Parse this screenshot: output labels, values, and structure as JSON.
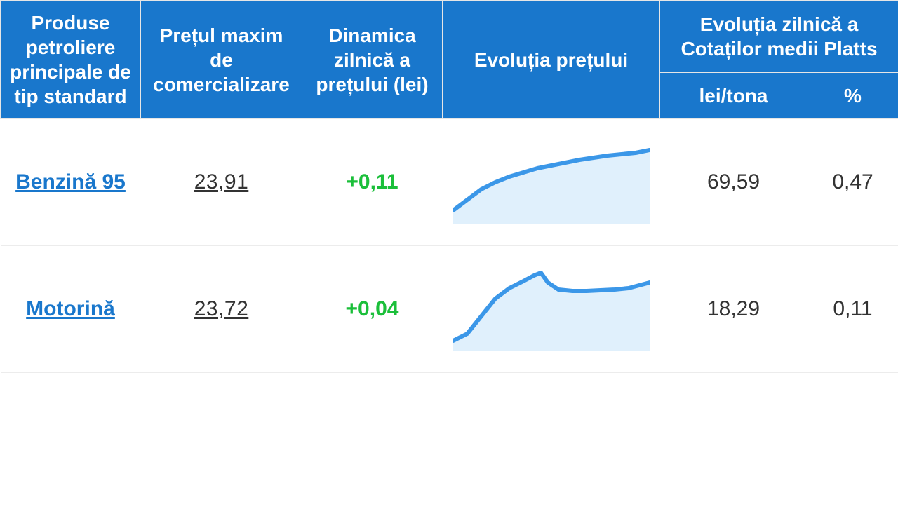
{
  "colors": {
    "header_bg": "#1977cc",
    "header_text": "#ffffff",
    "link": "#1977cc",
    "body_text": "#333333",
    "positive": "#1bbf3a",
    "spark_stroke": "#3b97e8",
    "spark_fill": "#a7d3f5",
    "row_border": "#ececec"
  },
  "table": {
    "headers": {
      "product": "Produse petroliere principale de tip standard",
      "max_price": "Prețul maxim de comercializare",
      "dynamics": "Dinamica zilnică a prețului (lei)",
      "evolution": "Evoluția prețului",
      "platts_group": "Evoluția zilnică a Cotaților medii Platts",
      "lei_tona": "lei/tona",
      "percent": "%"
    },
    "rows": [
      {
        "product": "Benzină 95",
        "price": "23,91",
        "dynamics": "+0,11",
        "dynamics_positive": true,
        "lei_tona": "69,59",
        "percent": "0,47",
        "spark": {
          "type": "area",
          "stroke": "#3b97e8",
          "fill": "#a7d3f5",
          "fill_opacity": 0.35,
          "stroke_width": 6,
          "viewbox_w": 280,
          "viewbox_h": 120,
          "points": [
            [
              0,
              100
            ],
            [
              20,
              85
            ],
            [
              40,
              70
            ],
            [
              60,
              60
            ],
            [
              80,
              52
            ],
            [
              100,
              46
            ],
            [
              120,
              40
            ],
            [
              140,
              36
            ],
            [
              160,
              32
            ],
            [
              180,
              28
            ],
            [
              200,
              25
            ],
            [
              220,
              22
            ],
            [
              240,
              20
            ],
            [
              260,
              18
            ],
            [
              280,
              14
            ]
          ]
        }
      },
      {
        "product": "Motorină",
        "price": "23,72",
        "dynamics": "+0,04",
        "dynamics_positive": true,
        "lei_tona": "18,29",
        "percent": "0,11",
        "spark": {
          "type": "area",
          "stroke": "#3b97e8",
          "fill": "#a7d3f5",
          "fill_opacity": 0.35,
          "stroke_width": 6,
          "viewbox_w": 280,
          "viewbox_h": 120,
          "points": [
            [
              0,
              105
            ],
            [
              20,
              95
            ],
            [
              40,
              70
            ],
            [
              60,
              45
            ],
            [
              80,
              30
            ],
            [
              100,
              20
            ],
            [
              115,
              12
            ],
            [
              125,
              8
            ],
            [
              135,
              22
            ],
            [
              150,
              32
            ],
            [
              170,
              34
            ],
            [
              190,
              34
            ],
            [
              210,
              33
            ],
            [
              230,
              32
            ],
            [
              250,
              30
            ],
            [
              265,
              26
            ],
            [
              280,
              22
            ]
          ]
        }
      }
    ]
  }
}
